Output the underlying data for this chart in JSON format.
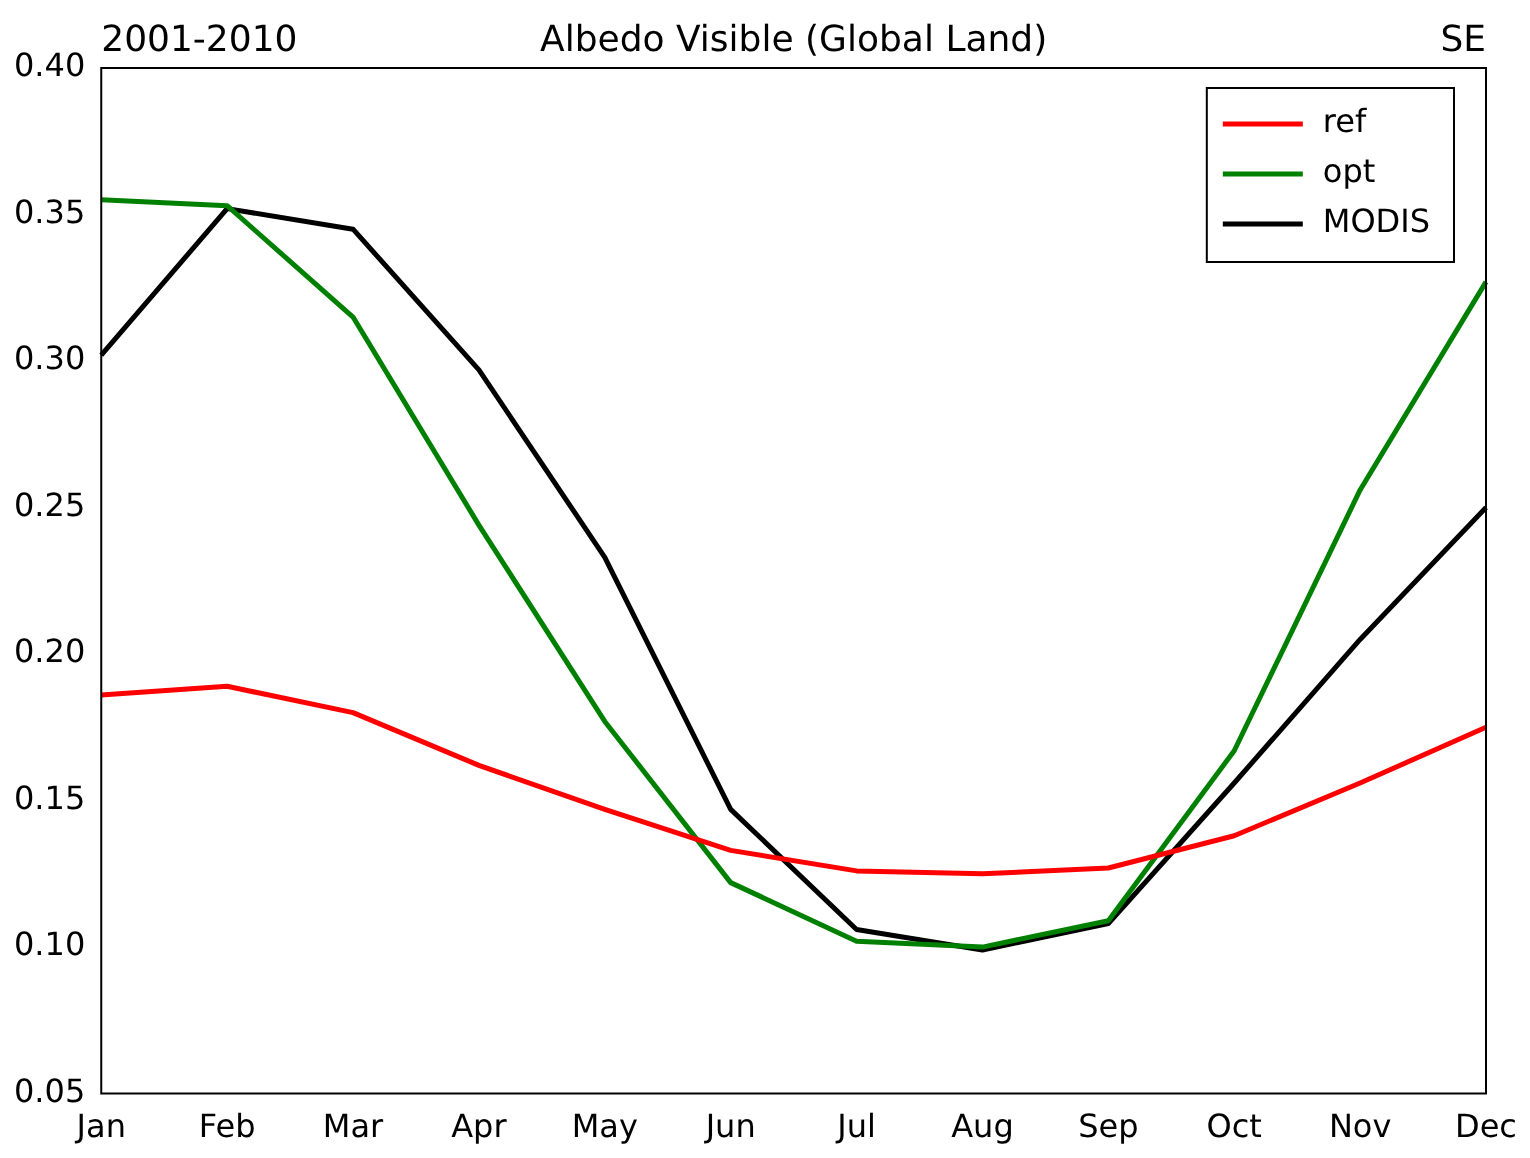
{
  "chart_data": {
    "type": "line",
    "title": "Albedo Visible (Global Land)",
    "annotations": [
      "2001-2010",
      "SE"
    ],
    "categories": [
      "Jan",
      "Feb",
      "Mar",
      "Apr",
      "May",
      "Jun",
      "Jul",
      "Aug",
      "Sep",
      "Oct",
      "Nov",
      "Dec"
    ],
    "series": [
      {
        "name": "ref",
        "color": "#ff0000",
        "values": [
          0.186,
          0.189,
          0.18,
          0.162,
          0.147,
          0.133,
          0.126,
          0.125,
          0.127,
          0.138,
          0.156,
          0.175
        ]
      },
      {
        "name": "opt",
        "color": "#008000",
        "values": [
          0.355,
          0.353,
          0.315,
          0.244,
          0.177,
          0.122,
          0.102,
          0.1,
          0.109,
          0.167,
          0.256,
          0.327
        ]
      },
      {
        "name": "MODIS",
        "color": "#000000",
        "values": [
          0.302,
          0.352,
          0.345,
          0.297,
          0.233,
          0.147,
          0.106,
          0.099,
          0.108,
          0.156,
          0.205,
          0.25
        ]
      }
    ],
    "ylim": [
      0.05,
      0.4
    ],
    "yticks": [
      {
        "value": 0.05,
        "label": "0.05"
      },
      {
        "value": 0.1,
        "label": "0.10"
      },
      {
        "value": 0.15,
        "label": "0.15"
      },
      {
        "value": 0.2,
        "label": "0.20"
      },
      {
        "value": 0.25,
        "label": "0.25"
      },
      {
        "value": 0.3,
        "label": "0.30"
      },
      {
        "value": 0.35,
        "label": "0.35"
      },
      {
        "value": 0.4,
        "label": "0.40"
      }
    ],
    "grid": false,
    "legend": "top right",
    "marker": "none",
    "line_style": "solid"
  }
}
